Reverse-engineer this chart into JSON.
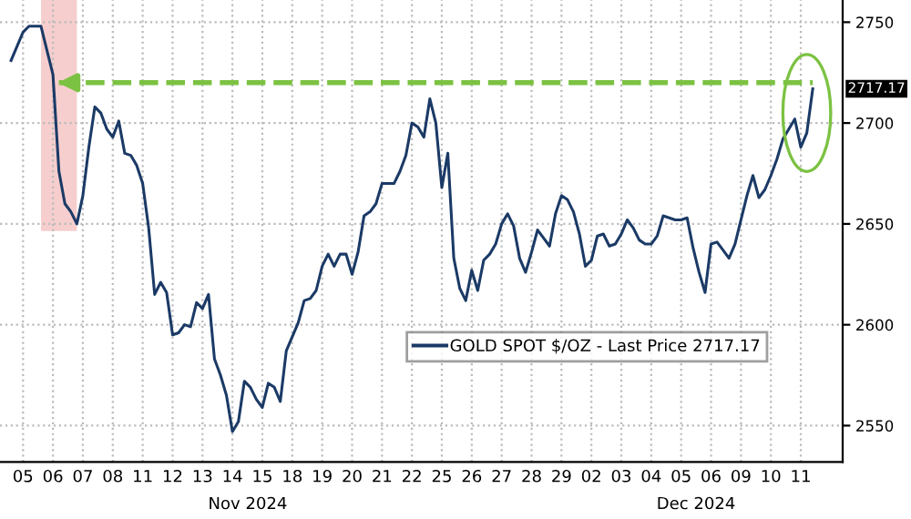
{
  "chart_data": {
    "type": "line",
    "categories": [
      null,
      null,
      "05",
      null,
      null,
      null,
      null,
      "06",
      null,
      null,
      null,
      null,
      "07",
      null,
      null,
      null,
      null,
      "08",
      null,
      null,
      null,
      null,
      "11",
      null,
      null,
      null,
      null,
      "12",
      null,
      null,
      null,
      null,
      "13",
      null,
      null,
      null,
      null,
      "14",
      null,
      null,
      null,
      null,
      "15",
      null,
      null,
      null,
      null,
      "18",
      null,
      null,
      null,
      null,
      "19",
      null,
      null,
      null,
      null,
      "20",
      null,
      null,
      null,
      null,
      "21",
      null,
      null,
      null,
      null,
      "22",
      null,
      null,
      null,
      null,
      "25",
      null,
      null,
      null,
      null,
      "26",
      null,
      null,
      null,
      null,
      "27",
      null,
      null,
      null,
      null,
      "28",
      null,
      null,
      null,
      null,
      "29",
      null,
      null,
      null,
      null,
      "02",
      null,
      null,
      null,
      null,
      "03",
      null,
      null,
      null,
      null,
      "04",
      null,
      null,
      null,
      null,
      "05",
      null,
      null,
      null,
      null,
      "06",
      null,
      null,
      null,
      null,
      "09",
      null,
      null,
      null,
      null,
      "10",
      null,
      null,
      null,
      null,
      "11",
      null,
      null
    ],
    "series": [
      {
        "name": "GOLD SPOT $/OZ - Last Price 2717.17",
        "color": "#1b3a66",
        "values": [
          2731,
          2738,
          2745,
          2748,
          2748,
          2748,
          2736,
          2724,
          2676,
          2660,
          2656,
          2650,
          2664,
          2688,
          2708,
          2705,
          2697,
          2693,
          2701,
          2685,
          2684,
          2679,
          2670,
          2648,
          2615,
          2621,
          2616,
          2595,
          2596,
          2600,
          2599,
          2611,
          2608,
          2615,
          2583,
          2575,
          2565,
          2547,
          2552,
          2572,
          2569,
          2563,
          2559,
          2571,
          2569,
          2562,
          2587,
          2594,
          2601,
          2612,
          2613,
          2617,
          2629,
          2635,
          2629,
          2635,
          2635,
          2625,
          2636,
          2654,
          2656,
          2660,
          2670,
          2670,
          2670,
          2676,
          2684,
          2700,
          2698,
          2693,
          2712,
          2700,
          2668,
          2685,
          2633,
          2618,
          2612,
          2627,
          2617,
          2632,
          2635,
          2640,
          2650,
          2655,
          2649,
          2633,
          2626,
          2636,
          2647,
          2643,
          2639,
          2655,
          2664,
          2662,
          2656,
          2645,
          2629,
          2632,
          2644,
          2645,
          2639,
          2640,
          2645,
          2652,
          2648,
          2642,
          2640,
          2640,
          2644,
          2654,
          2653,
          2652,
          2652,
          2653,
          2638,
          2626,
          2616,
          2640,
          2641,
          2637,
          2633,
          2640,
          2652,
          2664,
          2674,
          2663,
          2667,
          2674,
          2682,
          2692,
          2697,
          2702,
          2688,
          2695,
          2717
        ]
      }
    ],
    "ylim": [
      2532,
      2761
    ],
    "yticks": [
      2550,
      2600,
      2650,
      2700,
      2750
    ],
    "ref_lines": [
      {
        "axis": "y",
        "value": 2720,
        "color": "#7cc242",
        "line_style": "dashed"
      }
    ],
    "annotations": [
      "Nov 2024",
      "Dec 2024",
      "2717.17"
    ],
    "grid": true,
    "legend": "bottom right",
    "line_style": "solid",
    "marker": "none"
  }
}
